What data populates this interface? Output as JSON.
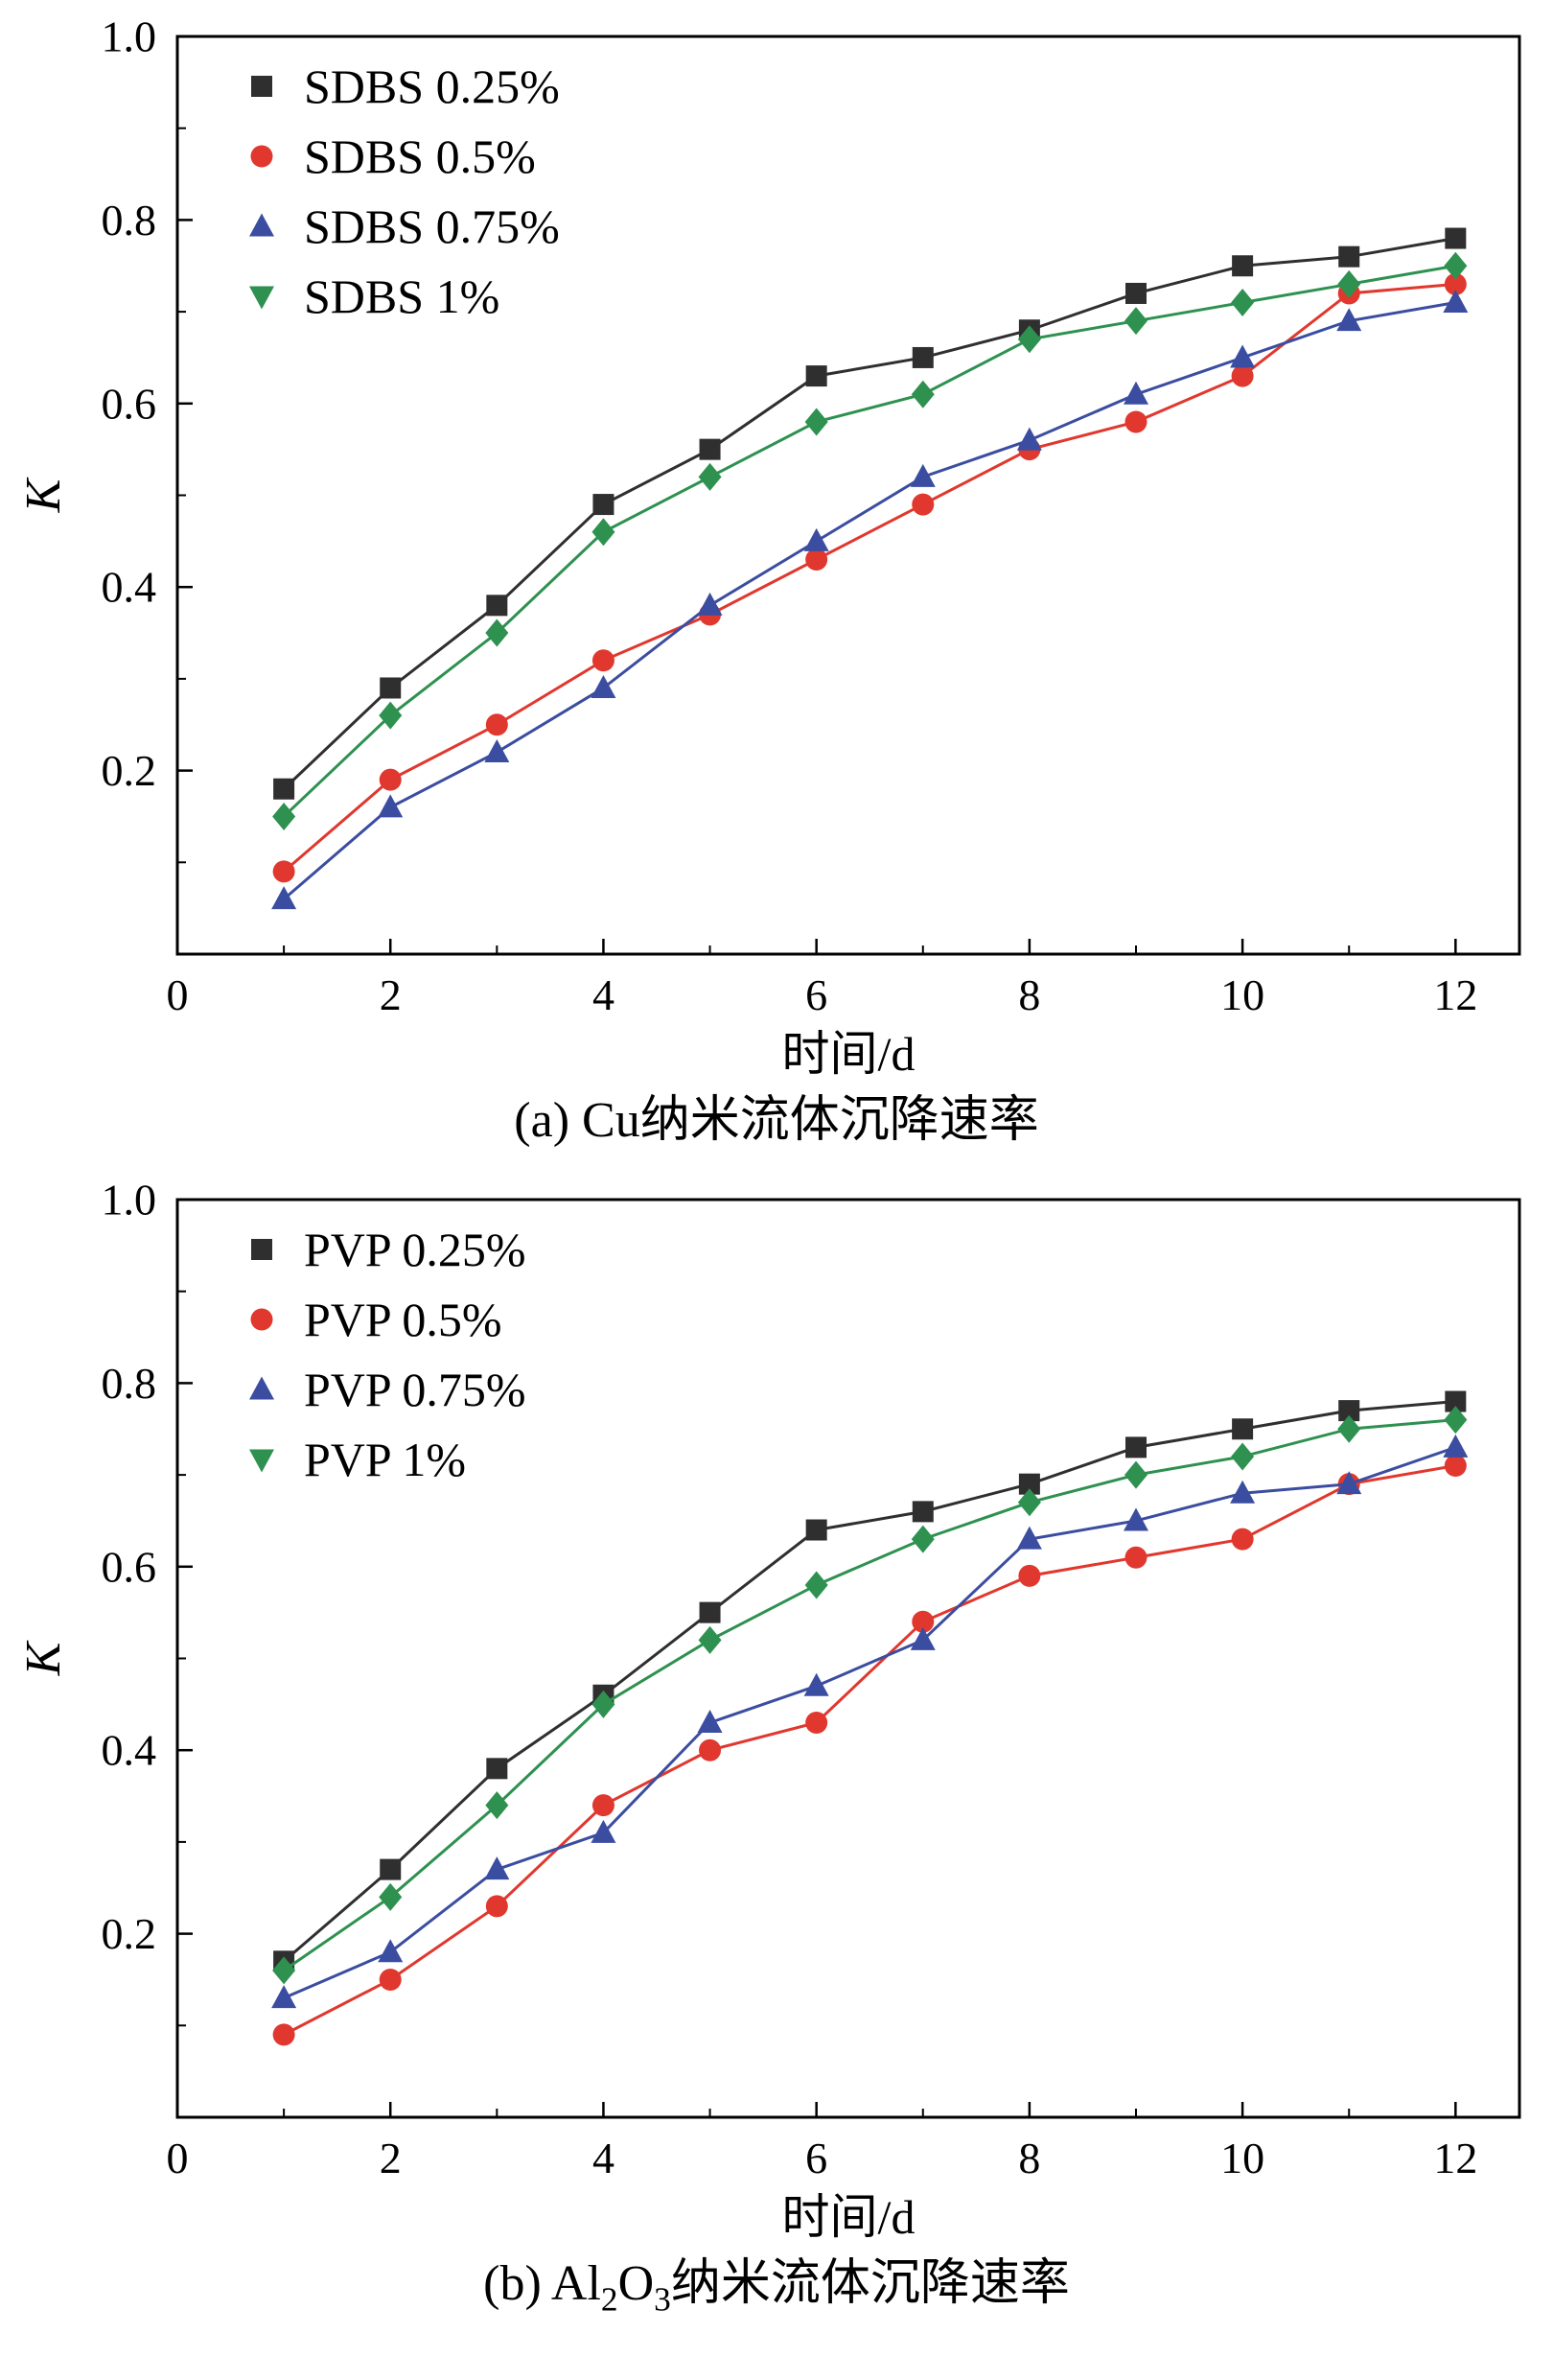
{
  "page": {
    "background": "#ffffff",
    "text_color": "#000000"
  },
  "chart_data": [
    {
      "type": "line",
      "caption_parts": [
        {
          "text": "(a) Cu纳米流体沉降速率",
          "sub": false
        }
      ],
      "xlabel": "时间/d",
      "ylabel": "K",
      "xlim": [
        0,
        12.6
      ],
      "ylim": [
        0,
        1.0
      ],
      "x_ticks": [
        0,
        2,
        4,
        6,
        8,
        10,
        12
      ],
      "x_minor_ticks": [
        1,
        3,
        5,
        7,
        9,
        11
      ],
      "y_ticks": [
        0.2,
        0.4,
        0.6,
        0.8,
        1.0
      ],
      "y_minor_ticks": [
        0.1,
        0.3,
        0.5,
        0.7,
        0.9
      ],
      "grid": false,
      "legend_position": "top-left",
      "x": [
        1,
        2,
        3,
        4,
        5,
        6,
        7,
        8,
        9,
        10,
        11,
        12
      ],
      "series": [
        {
          "name": "SDBS 0.25%",
          "color": "#2f2f2f",
          "marker": "square",
          "legend_marker": "square",
          "values": [
            0.18,
            0.29,
            0.38,
            0.49,
            0.55,
            0.63,
            0.65,
            0.68,
            0.72,
            0.75,
            0.76,
            0.78
          ]
        },
        {
          "name": "SDBS 0.5%",
          "color": "#e0382e",
          "marker": "circle",
          "legend_marker": "circle",
          "values": [
            0.09,
            0.19,
            0.25,
            0.32,
            0.37,
            0.43,
            0.49,
            0.55,
            0.58,
            0.63,
            0.72,
            0.73
          ]
        },
        {
          "name": "SDBS 0.75%",
          "color": "#3b4da0",
          "marker": "triangle-up",
          "legend_marker": "triangle-up",
          "values": [
            0.06,
            0.16,
            0.22,
            0.29,
            0.38,
            0.45,
            0.52,
            0.56,
            0.61,
            0.65,
            0.69,
            0.71
          ]
        },
        {
          "name": "SDBS 1%",
          "color": "#2e9150",
          "marker": "diamond",
          "legend_marker": "triangle-down",
          "values": [
            0.15,
            0.26,
            0.35,
            0.46,
            0.52,
            0.58,
            0.61,
            0.67,
            0.69,
            0.71,
            0.73,
            0.75
          ]
        }
      ]
    },
    {
      "type": "line",
      "caption_parts": [
        {
          "text": "(b) Al",
          "sub": false
        },
        {
          "text": "2",
          "sub": true
        },
        {
          "text": "O",
          "sub": false
        },
        {
          "text": "3",
          "sub": true
        },
        {
          "text": "纳米流体沉降速率",
          "sub": false
        }
      ],
      "xlabel": "时间/d",
      "ylabel": "K",
      "xlim": [
        0,
        12.6
      ],
      "ylim": [
        0,
        1.0
      ],
      "x_ticks": [
        0,
        2,
        4,
        6,
        8,
        10,
        12
      ],
      "x_minor_ticks": [
        1,
        3,
        5,
        7,
        9,
        11
      ],
      "y_ticks": [
        0.2,
        0.4,
        0.6,
        0.8,
        1.0
      ],
      "y_minor_ticks": [
        0.1,
        0.3,
        0.5,
        0.7,
        0.9
      ],
      "grid": false,
      "legend_position": "top-left",
      "x": [
        1,
        2,
        3,
        4,
        5,
        6,
        7,
        8,
        9,
        10,
        11,
        12
      ],
      "series": [
        {
          "name": "PVP 0.25%",
          "color": "#2f2f2f",
          "marker": "square",
          "legend_marker": "square",
          "values": [
            0.17,
            0.27,
            0.38,
            0.46,
            0.55,
            0.64,
            0.66,
            0.69,
            0.73,
            0.75,
            0.77,
            0.78
          ]
        },
        {
          "name": "PVP 0.5%",
          "color": "#e0382e",
          "marker": "circle",
          "legend_marker": "circle",
          "values": [
            0.09,
            0.15,
            0.23,
            0.34,
            0.4,
            0.43,
            0.54,
            0.59,
            0.61,
            0.63,
            0.69,
            0.71
          ]
        },
        {
          "name": "PVP 0.75%",
          "color": "#3b4da0",
          "marker": "triangle-up",
          "legend_marker": "triangle-up",
          "values": [
            0.13,
            0.18,
            0.27,
            0.31,
            0.43,
            0.47,
            0.52,
            0.63,
            0.65,
            0.68,
            0.69,
            0.73
          ]
        },
        {
          "name": "PVP 1%",
          "color": "#2e9150",
          "marker": "diamond",
          "legend_marker": "triangle-down",
          "values": [
            0.16,
            0.24,
            0.34,
            0.45,
            0.52,
            0.58,
            0.63,
            0.67,
            0.7,
            0.72,
            0.75,
            0.76
          ]
        }
      ]
    }
  ]
}
